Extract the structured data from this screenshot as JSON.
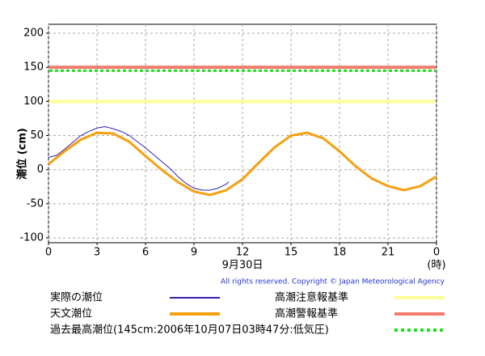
{
  "chart_data": {
    "type": "line",
    "xlabel": "9月30日",
    "xunit": "(時)",
    "ylabel": "潮位 (cm)",
    "copyright": "All rights reserved. Copyright © Japan Meteorological Agency",
    "xlim": [
      0,
      24
    ],
    "xticks": [
      0,
      3,
      6,
      9,
      12,
      15,
      18,
      21,
      {
        "value": 24,
        "label": "0"
      }
    ],
    "ylim": [
      -107,
      213
    ],
    "yticks": [
      -100,
      -50,
      0,
      50,
      100,
      150,
      200
    ],
    "grid": true,
    "series": [
      {
        "name": "実際の潮位",
        "color": "#3322aa",
        "width": 1,
        "x": [
          0,
          0.5,
          1,
          1.5,
          2,
          2.5,
          3,
          3.5,
          4,
          4.5,
          5,
          5.5,
          6,
          6.5,
          7,
          7.5,
          8,
          8.5,
          9,
          9.5,
          10,
          10.5,
          11,
          11.15
        ],
        "values": [
          18,
          21,
          30,
          40,
          50,
          56,
          61,
          63,
          60,
          56,
          50,
          41,
          32,
          22,
          12,
          2,
          -10,
          -20,
          -27,
          -30,
          -30,
          -27,
          -21,
          -18
        ]
      },
      {
        "name": "天文潮位",
        "color": "#f5a010",
        "width": 3,
        "x": [
          0,
          1,
          2,
          3,
          4,
          5,
          6,
          7,
          8,
          9,
          10,
          11,
          12,
          13,
          14,
          15,
          16,
          17,
          18,
          19,
          20,
          21,
          22,
          23,
          24
        ],
        "values": [
          8,
          27,
          44,
          54,
          53,
          41,
          20,
          0,
          -18,
          -32,
          -37,
          -30,
          -14,
          10,
          33,
          50,
          54,
          46,
          27,
          5,
          -13,
          -24,
          -30,
          -24,
          -10
        ]
      }
    ],
    "reference_lines": [
      {
        "name": "高潮注意報基準",
        "value": 100,
        "color": "#ffff99",
        "dashed": false
      },
      {
        "name": "高潮警報基準",
        "value": 150,
        "color": "#f47c6c",
        "dashed": false
      },
      {
        "name": "過去最高潮位(145cm:2006年10月07日03時47分:低気圧)",
        "value": 145,
        "color": "#22dd22",
        "dashed": true
      }
    ]
  }
}
